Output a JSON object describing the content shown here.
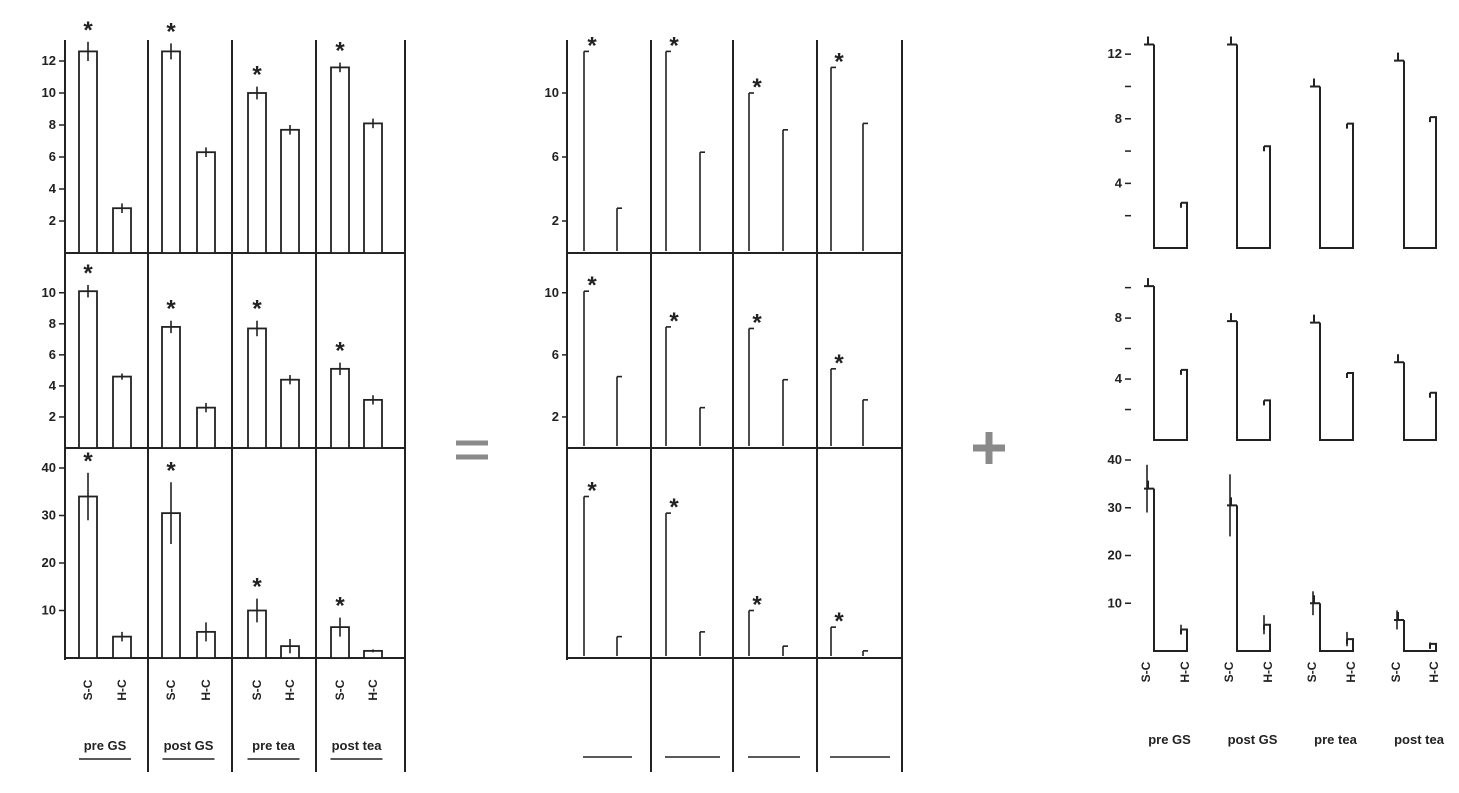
{
  "chart_data": [
    {
      "id": "observed",
      "type": "bar",
      "groups": [
        "pre GS",
        "post GS",
        "pre tea",
        "post tea"
      ],
      "categories": [
        "S-C",
        "H-C"
      ],
      "panels": [
        {
          "ylim": [
            0,
            13
          ],
          "yticks": [
            2,
            4,
            6,
            8,
            10,
            12
          ],
          "values": [
            [
              12.6,
              2.8
            ],
            [
              12.6,
              6.3
            ],
            [
              10.0,
              7.7
            ],
            [
              11.6,
              8.1
            ]
          ],
          "errors": [
            [
              0.6,
              0.3
            ],
            [
              0.5,
              0.3
            ],
            [
              0.4,
              0.3
            ],
            [
              0.3,
              0.3
            ]
          ],
          "significant": [
            true,
            true,
            true,
            true
          ]
        },
        {
          "ylim": [
            0,
            10.5
          ],
          "yticks": [
            2,
            4,
            6,
            8,
            10
          ],
          "values": [
            [
              10.1,
              4.6
            ],
            [
              7.8,
              2.6
            ],
            [
              7.7,
              4.4
            ],
            [
              5.1,
              3.1
            ]
          ],
          "errors": [
            [
              0.4,
              0.2
            ],
            [
              0.4,
              0.3
            ],
            [
              0.5,
              0.3
            ],
            [
              0.4,
              0.3
            ]
          ],
          "significant": [
            true,
            true,
            true,
            true
          ]
        },
        {
          "ylim": [
            0,
            40
          ],
          "yticks": [
            10,
            20,
            30,
            40
          ],
          "values": [
            [
              34,
              4.5
            ],
            [
              30.5,
              5.5
            ],
            [
              10,
              2.5
            ],
            [
              6.5,
              1.5
            ]
          ],
          "errors": [
            [
              5,
              1
            ],
            [
              6.5,
              2
            ],
            [
              2.5,
              1.5
            ],
            [
              2,
              0.3
            ]
          ],
          "significant": [
            true,
            true,
            true,
            true
          ]
        }
      ]
    },
    {
      "id": "component-a",
      "type": "bar",
      "groups": [
        "pre GS",
        "post GS",
        "pre tea",
        "post tea"
      ],
      "categories": [
        "S-C",
        "H-C"
      ],
      "panels": [
        {
          "ylim": [
            0,
            13
          ],
          "yticks": [
            2,
            6,
            10
          ],
          "ytick_labels": [
            "2",
            "6",
            "10"
          ],
          "values": [
            [
              12.6,
              2.8
            ],
            [
              12.6,
              6.3
            ],
            [
              10.0,
              7.7
            ],
            [
              11.6,
              8.1
            ]
          ],
          "significant": [
            true,
            true,
            true,
            true
          ]
        },
        {
          "ylim": [
            0,
            10.5
          ],
          "yticks": [
            2,
            6,
            10
          ],
          "ytick_labels": [
            "2",
            "6",
            "10"
          ],
          "values": [
            [
              10.1,
              4.6
            ],
            [
              7.8,
              2.6
            ],
            [
              7.7,
              4.4
            ],
            [
              5.1,
              3.1
            ]
          ],
          "significant": [
            true,
            true,
            true,
            true
          ]
        },
        {
          "ylim": [
            0,
            40
          ],
          "yticks": [],
          "ytick_labels": [],
          "values": [
            [
              34,
              4.5
            ],
            [
              30.5,
              5.5
            ],
            [
              10,
              2.5
            ],
            [
              6.5,
              1.5
            ]
          ],
          "significant": [
            true,
            true,
            true,
            true
          ]
        }
      ]
    },
    {
      "id": "component-b",
      "type": "bar",
      "groups": [
        "pre GS",
        "post GS",
        "pre tea",
        "post tea"
      ],
      "categories": [
        "S-C",
        "H-C"
      ],
      "panels": [
        {
          "ylim": [
            0,
            13
          ],
          "yticks": [
            2,
            4,
            6,
            8,
            10,
            12
          ],
          "ytick_labels": [
            "",
            "4",
            "",
            "8",
            "",
            "12"
          ],
          "values": [
            [
              12.6,
              2.8
            ],
            [
              12.6,
              6.3
            ],
            [
              10.0,
              7.7
            ],
            [
              11.6,
              8.1
            ]
          ]
        },
        {
          "ylim": [
            0,
            10.5
          ],
          "yticks": [
            2,
            4,
            6,
            8,
            10
          ],
          "ytick_labels": [
            "",
            "4",
            "",
            "8",
            ""
          ],
          "values": [
            [
              10.1,
              4.6
            ],
            [
              7.8,
              2.6
            ],
            [
              7.7,
              4.4
            ],
            [
              5.1,
              3.1
            ]
          ]
        },
        {
          "ylim": [
            0,
            40
          ],
          "yticks": [
            10,
            20,
            30,
            40
          ],
          "ytick_labels": [
            "10",
            "20",
            "30",
            "40"
          ],
          "values": [
            [
              34,
              4.5
            ],
            [
              30.5,
              5.5
            ],
            [
              10,
              2.5
            ],
            [
              6.5,
              1.5
            ]
          ],
          "errors": [
            [
              5,
              1
            ],
            [
              6.5,
              2
            ],
            [
              2.5,
              1.5
            ],
            [
              2,
              0.3
            ]
          ]
        }
      ]
    }
  ],
  "operators": {
    "equals": "=",
    "plus": "+"
  },
  "significance_marker": "*",
  "colors": {
    "ink": "#222222",
    "operator": "#8a8a8a",
    "background": "#ffffff"
  }
}
